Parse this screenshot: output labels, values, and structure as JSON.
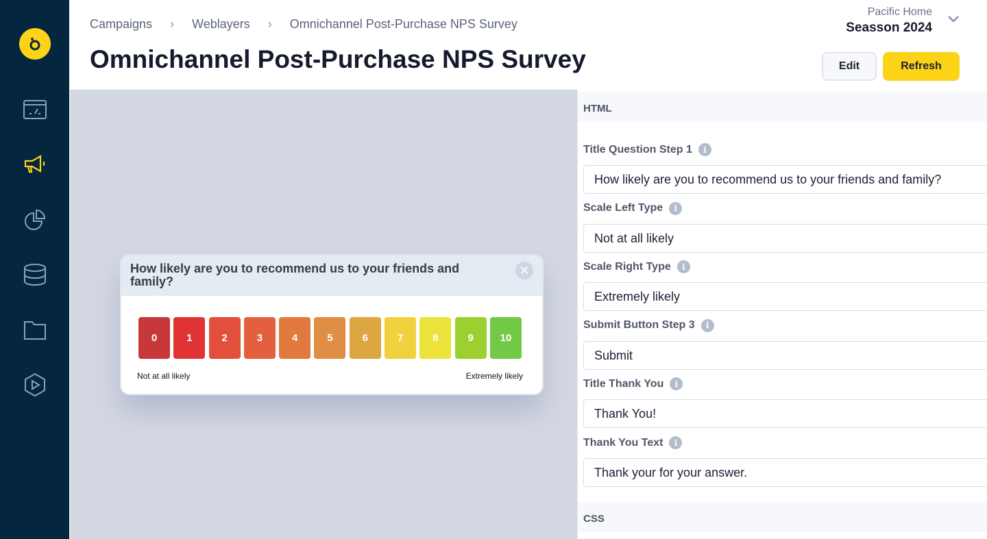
{
  "sidebar": {
    "items": [
      {
        "name": "dashboard",
        "icon": "dashboard-gauge-icon",
        "active": false
      },
      {
        "name": "campaigns",
        "icon": "megaphone-icon",
        "active": true
      },
      {
        "name": "analytics",
        "icon": "pie-chart-icon",
        "active": false
      },
      {
        "name": "database",
        "icon": "database-icon",
        "active": false
      },
      {
        "name": "files",
        "icon": "folder-icon",
        "active": false
      },
      {
        "name": "media",
        "icon": "play-hexagon-icon",
        "active": false
      }
    ],
    "accent": "#fcd317",
    "background": "#04263f"
  },
  "header": {
    "breadcrumbs": [
      "Campaigns",
      "Weblayers",
      "Omnichannel Post-Purchase NPS Survey"
    ],
    "title": "Omnichannel Post-Purchase NPS Survey",
    "org": "Pacific Home",
    "project": "Seasson 2024",
    "edit_label": "Edit",
    "refresh_label": "Refresh"
  },
  "preview": {
    "question": "How likely are you to recommend us to your friends and family?",
    "scale": [
      {
        "v": "0",
        "c": "#c8383b"
      },
      {
        "v": "1",
        "c": "#e03434"
      },
      {
        "v": "2",
        "c": "#e24f3a"
      },
      {
        "v": "3",
        "c": "#e3603e"
      },
      {
        "v": "4",
        "c": "#e27a40"
      },
      {
        "v": "5",
        "c": "#e08e44"
      },
      {
        "v": "6",
        "c": "#dca643"
      },
      {
        "v": "7",
        "c": "#f0d23e"
      },
      {
        "v": "8",
        "c": "#ebe23a"
      },
      {
        "v": "9",
        "c": "#9ccf30"
      },
      {
        "v": "10",
        "c": "#72c945"
      }
    ],
    "left_label": "Not at all likely",
    "right_label": "Extremely likely"
  },
  "panel": {
    "section_html": "HTML",
    "section_css": "CSS",
    "fields": [
      {
        "label": "Title Question Step 1",
        "value": "How likely are you to recommend us to your friends and family?"
      },
      {
        "label": "Scale Left Type",
        "value": "Not at all likely"
      },
      {
        "label": "Scale Right Type",
        "value": "Extremely likely"
      },
      {
        "label": "Submit Button Step 3",
        "value": "Submit"
      },
      {
        "label": "Title Thank You",
        "value": "Thank You!"
      },
      {
        "label": "Thank You Text",
        "value": "Thank your for your answer."
      }
    ]
  }
}
